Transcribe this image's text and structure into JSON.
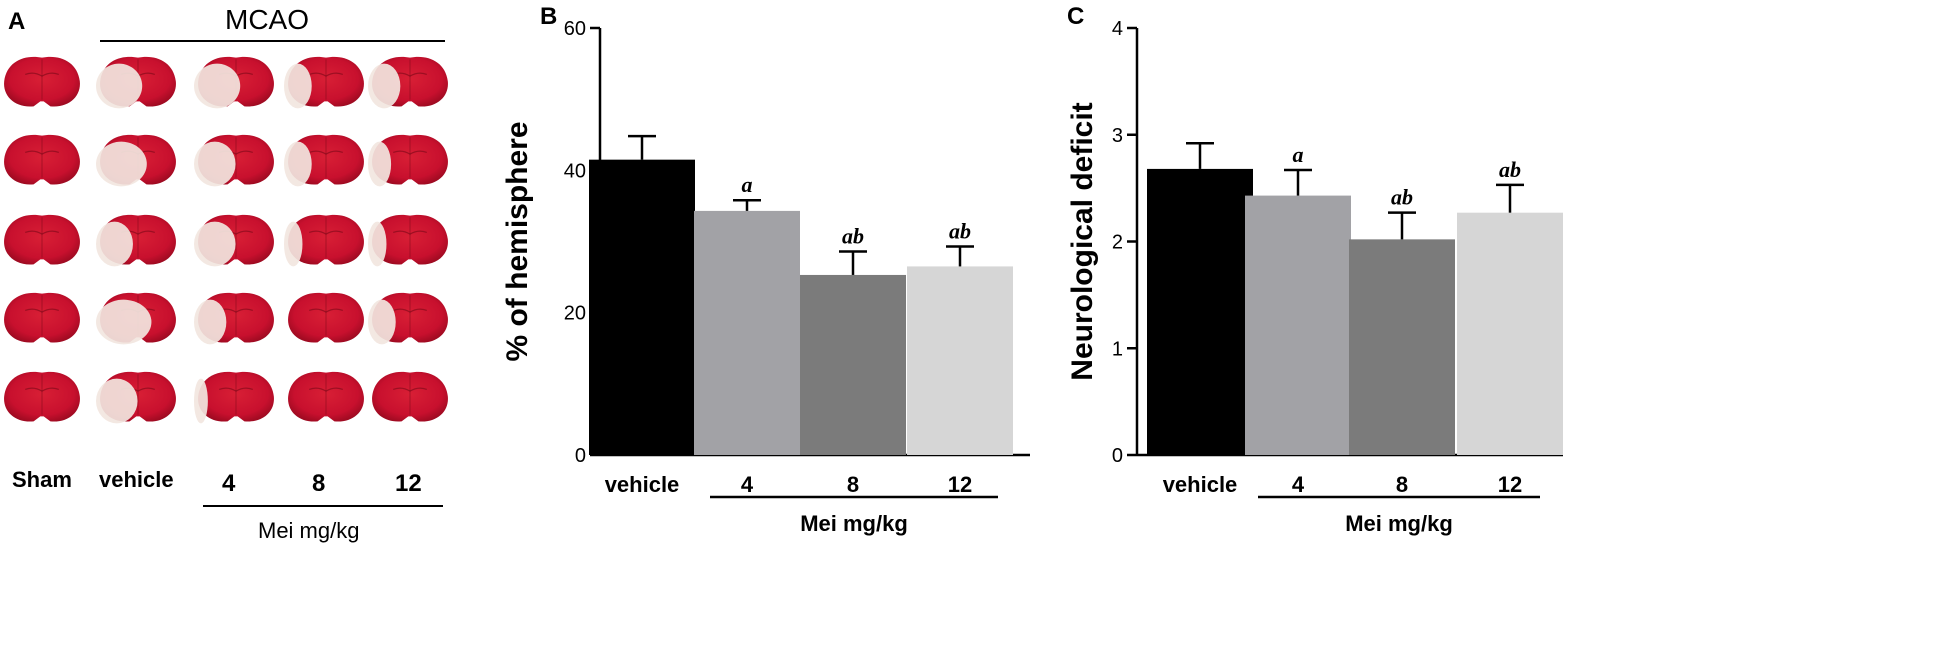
{
  "panel_a": {
    "letter": "A",
    "mcao_label": "MCAO",
    "group_labels": [
      "Sham",
      "vehicle"
    ],
    "dose_labels": [
      "4",
      "8",
      "12"
    ],
    "unit_label": "Mei mg/kg"
  },
  "colors": {
    "vehicle": "#000000",
    "dose_4": "#a2a2a6",
    "dose_8": "#7b7b7b",
    "dose_12": "#d6d6d6",
    "tissue_red": "#c8102e",
    "infarct_pale": "#f2e6e0"
  },
  "chart_data": [
    {
      "type": "bar",
      "panel": "B",
      "categories": [
        "vehicle",
        "4",
        "8",
        "12"
      ],
      "values": [
        41.5,
        34.3,
        25.3,
        26.5
      ],
      "errors": [
        3.3,
        1.5,
        3.3,
        2.8
      ],
      "annotations": [
        "",
        "a",
        "ab",
        "ab"
      ],
      "ylabel": "% of hemisphere",
      "ylim": [
        0,
        60
      ],
      "yticks": [
        0,
        20,
        40,
        60
      ],
      "group_label": "Mei  mg/kg",
      "colors": [
        "#000000",
        "#a2a2a6",
        "#7b7b7b",
        "#d6d6d6"
      ]
    },
    {
      "type": "bar",
      "panel": "C",
      "categories": [
        "vehicle",
        "4",
        "8",
        "12"
      ],
      "values": [
        2.68,
        2.43,
        2.02,
        2.27
      ],
      "errors": [
        0.24,
        0.24,
        0.25,
        0.26
      ],
      "annotations": [
        "",
        "a",
        "ab",
        "ab"
      ],
      "ylabel": "Neurological deficit",
      "ylim": [
        0,
        4
      ],
      "yticks": [
        0,
        1,
        2,
        3,
        4
      ],
      "group_label": "Mei  mg/kg",
      "colors": [
        "#000000",
        "#a2a2a6",
        "#7b7b7b",
        "#d6d6d6"
      ]
    }
  ]
}
